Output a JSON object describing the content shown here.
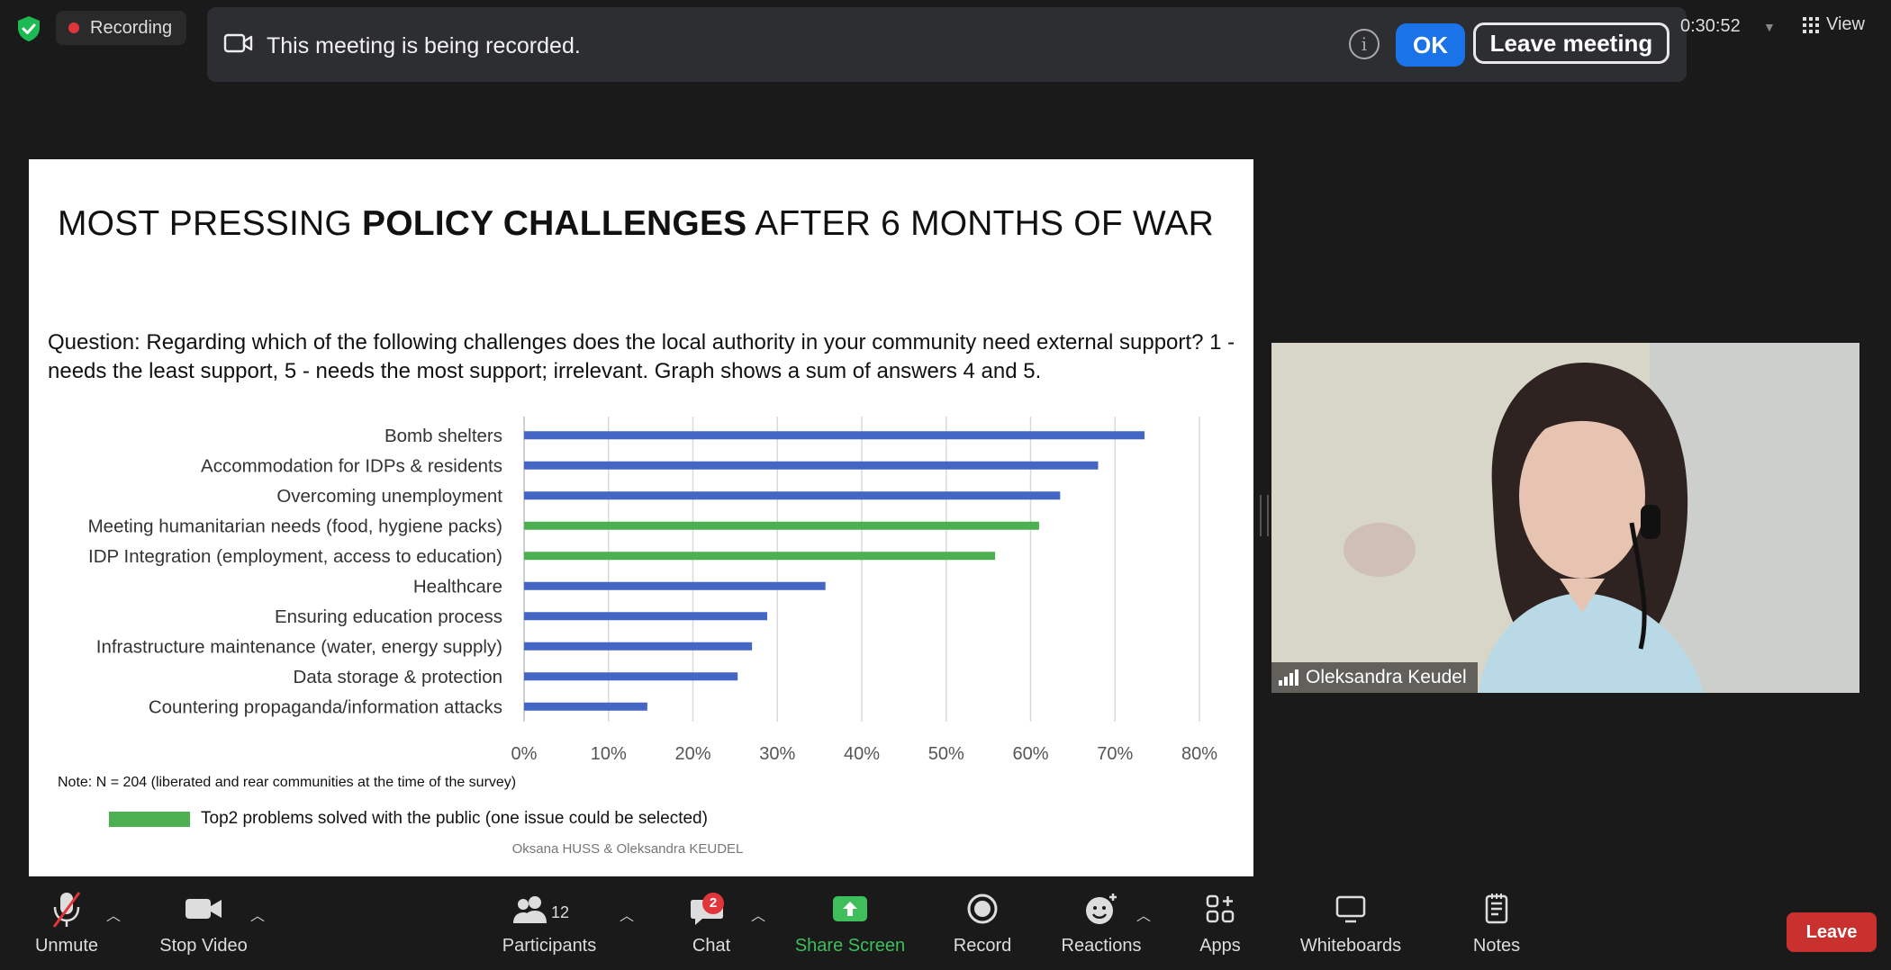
{
  "topbar": {
    "recording_label": "Recording",
    "timer": "0:30:52",
    "view_label": "View"
  },
  "banner": {
    "message": "This meeting is being recorded.",
    "ok_label": "OK",
    "leave_label": "Leave meeting"
  },
  "slide": {
    "title_pre": "MOST PRESSING ",
    "title_bold": "POLICY CHALLENGES",
    "title_post": " AFTER 6 MONTHS OF WAR",
    "question": "Question: Regarding which of the following challenges does the local authority in your community need external support? 1 - needs the least support, 5 - needs the most support; irrelevant. Graph shows a sum of answers 4 and 5.",
    "note": "Note: N = 204 (liberated and rear communities at the time of the survey)",
    "legend_label": "Top2 problems solved with the public (one issue could be selected)",
    "credit": "Oksana HUSS & Oleksandra KEUDEL"
  },
  "chart_data": {
    "type": "bar",
    "orientation": "horizontal",
    "categories": [
      "Bomb shelters",
      "Accommodation for IDPs & residents",
      "Overcoming unemployment",
      "Meeting humanitarian needs (food, hygiene packs)",
      "IDP Integration (employment, access to education)",
      "Healthcare",
      "Ensuring education process",
      "Infrastructure maintenance (water, energy supply)",
      "Data storage & protection",
      "Countering propaganda/information attacks"
    ],
    "values": [
      73.5,
      68,
      63.5,
      61,
      55.8,
      35.7,
      28.8,
      27,
      25.3,
      14.6
    ],
    "highlighted": [
      false,
      false,
      false,
      true,
      true,
      false,
      false,
      false,
      false,
      false
    ],
    "colors": {
      "default": "#4466c4",
      "highlight": "#4caf50"
    },
    "x_ticks": [
      "0%",
      "10%",
      "20%",
      "30%",
      "40%",
      "50%",
      "60%",
      "70%",
      "80%"
    ],
    "xlim": [
      0,
      80
    ],
    "grid": "vertical"
  },
  "video": {
    "participant_name": "Oleksandra Keudel"
  },
  "toolbar": {
    "unmute": "Unmute",
    "stop_video": "Stop Video",
    "participants": "Participants",
    "participants_count": "12",
    "chat": "Chat",
    "chat_badge": "2",
    "share_screen": "Share Screen",
    "record": "Record",
    "reactions": "Reactions",
    "apps": "Apps",
    "whiteboards": "Whiteboards",
    "notes": "Notes",
    "leave": "Leave"
  },
  "colors": {
    "share_green": "#3fbe5c",
    "ok_blue": "#1a73e8",
    "leave_red": "#c8312e"
  }
}
